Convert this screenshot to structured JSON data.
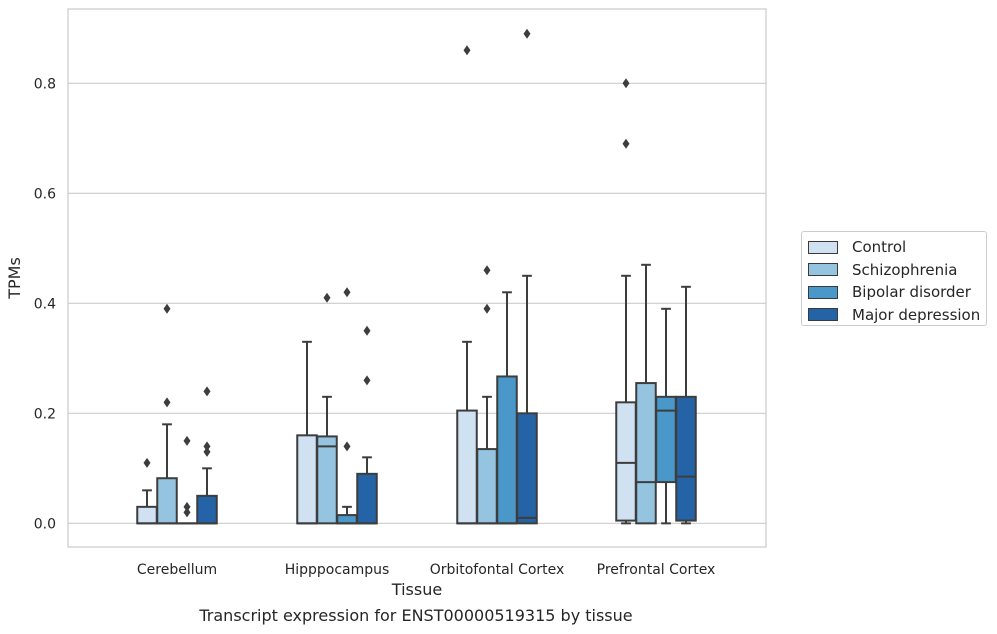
{
  "chart_data": {
    "type": "boxplot",
    "xlabel": "Tissue",
    "ylabel": "TPMs",
    "ylim": [
      -0.043,
      0.935
    ],
    "yticks": [
      0.0,
      0.2,
      0.4,
      0.6,
      0.8
    ],
    "ytick_labels": [
      "0.0",
      "0.2",
      "0.4",
      "0.6",
      "0.8"
    ],
    "grid": "horizontal",
    "legend_position": "right",
    "categories": [
      "Cerebellum",
      "Hipppocampus",
      "Orbitofontal Cortex",
      "Prefrontal Cortex"
    ],
    "series": [
      {
        "name": "Control",
        "color": "#d0e1f2",
        "boxes": [
          {
            "min": 0.0,
            "q1": 0.0,
            "median": 0.0,
            "q3": 0.03,
            "max": 0.06,
            "outliers": [
              0.11
            ]
          },
          {
            "min": 0.0,
            "q1": 0.0,
            "median": 0.0,
            "q3": 0.16,
            "max": 0.33,
            "outliers": []
          },
          {
            "min": 0.0,
            "q1": 0.0,
            "median": 0.0,
            "q3": 0.205,
            "max": 0.33,
            "outliers": [
              0.86
            ]
          },
          {
            "min": 0.0,
            "q1": 0.005,
            "median": 0.11,
            "q3": 0.22,
            "max": 0.45,
            "outliers": [
              0.69,
              0.8
            ]
          }
        ]
      },
      {
        "name": "Schizophrenia",
        "color": "#94c4df",
        "boxes": [
          {
            "min": 0.0,
            "q1": 0.0,
            "median": 0.0,
            "q3": 0.082,
            "max": 0.18,
            "outliers": [
              0.22,
              0.39
            ]
          },
          {
            "min": 0.0,
            "q1": 0.0,
            "median": 0.14,
            "q3": 0.158,
            "max": 0.23,
            "outliers": [
              0.41
            ]
          },
          {
            "min": 0.0,
            "q1": 0.0,
            "median": 0.0,
            "q3": 0.135,
            "max": 0.23,
            "outliers": [
              0.39,
              0.46
            ]
          },
          {
            "min": 0.0,
            "q1": 0.0,
            "median": 0.075,
            "q3": 0.255,
            "max": 0.47,
            "outliers": []
          }
        ]
      },
      {
        "name": "Bipolar disorder",
        "color": "#4a98c9",
        "boxes": [
          {
            "min": 0.0,
            "q1": 0.0,
            "median": 0.0,
            "q3": 0.0,
            "max": 0.0,
            "outliers": [
              0.02,
              0.03,
              0.15
            ]
          },
          {
            "min": 0.0,
            "q1": 0.0,
            "median": 0.0,
            "q3": 0.015,
            "max": 0.03,
            "outliers": [
              0.14,
              0.42
            ]
          },
          {
            "min": 0.0,
            "q1": 0.0,
            "median": 0.0,
            "q3": 0.267,
            "max": 0.42,
            "outliers": []
          },
          {
            "min": 0.0,
            "q1": 0.075,
            "median": 0.205,
            "q3": 0.23,
            "max": 0.39,
            "outliers": []
          }
        ]
      },
      {
        "name": "Major depression",
        "color": "#2464a6",
        "boxes": [
          {
            "min": 0.0,
            "q1": 0.0,
            "median": 0.0,
            "q3": 0.05,
            "max": 0.1,
            "outliers": [
              0.13,
              0.14,
              0.24
            ]
          },
          {
            "min": 0.0,
            "q1": 0.0,
            "median": 0.0,
            "q3": 0.09,
            "max": 0.12,
            "outliers": [
              0.26,
              0.35
            ]
          },
          {
            "min": 0.0,
            "q1": 0.0,
            "median": 0.01,
            "q3": 0.2,
            "max": 0.45,
            "outliers": [
              0.89
            ]
          },
          {
            "min": 0.0,
            "q1": 0.005,
            "median": 0.085,
            "q3": 0.23,
            "max": 0.43,
            "outliers": []
          }
        ]
      }
    ]
  },
  "caption": "Transcript expression for ENST00000519315 by tissue"
}
